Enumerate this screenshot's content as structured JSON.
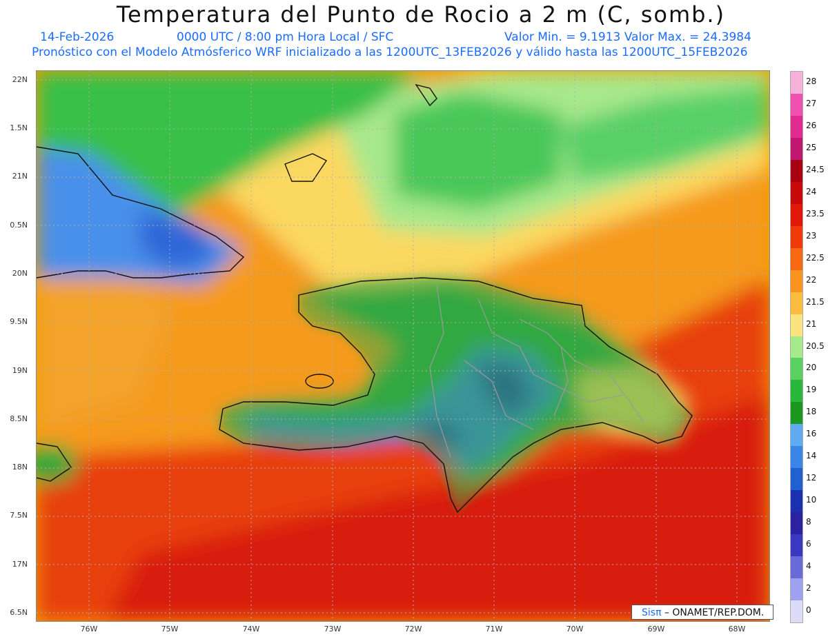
{
  "header": {
    "title": "Temperatura del Punto de Rocio a 2 m (C, somb.)",
    "date": "14-Feb-2026",
    "time_info": "0000 UTC / 8:00 pm Hora Local / SFC",
    "value_range": "Valor Min. = 9.1913  Valor Max. = 24.3984",
    "model_info": "Pronóstico con el Modelo Atmósferico WRF inicializado a las 1200UTC_13FEB2026 y válido hasta las  1200UTC_15FEB2026"
  },
  "axes": {
    "lat_labels": [
      "22N",
      "1.5N",
      "21N",
      "0.5N",
      "20N",
      "9.5N",
      "19N",
      "8.5N",
      "18N",
      "7.5N",
      "17N",
      "6.5N"
    ],
    "lon_labels": [
      "76W",
      "75W",
      "74W",
      "73W",
      "72W",
      "71W",
      "70W",
      "69W",
      "68W"
    ]
  },
  "colorbar": {
    "labels": [
      "28",
      "27",
      "26",
      "25",
      "24.5",
      "24",
      "23.5",
      "23",
      "22.5",
      "22",
      "21.5",
      "21",
      "20.5",
      "20",
      "19",
      "18",
      "16",
      "14",
      "12",
      "10",
      "8",
      "6",
      "4",
      "2",
      "0"
    ],
    "colors": [
      "#f7b0d8",
      "#f050b0",
      "#e02a90",
      "#c01870",
      "#a80010",
      "#c80a0a",
      "#e01808",
      "#f03a0a",
      "#f86a12",
      "#fa9420",
      "#fbbc40",
      "#fbe480",
      "#a6ea8c",
      "#5ad060",
      "#2ab83a",
      "#1a9820",
      "#60aaf0",
      "#3a86e8",
      "#2060d0",
      "#1a30b0",
      "#2a22a0",
      "#3a38c0",
      "#6a6ad8",
      "#a0a0f0",
      "#dcdcf8"
    ]
  },
  "credit": {
    "brand": "Sisπ",
    "text": " – ONAMET/REP.DOM."
  }
}
